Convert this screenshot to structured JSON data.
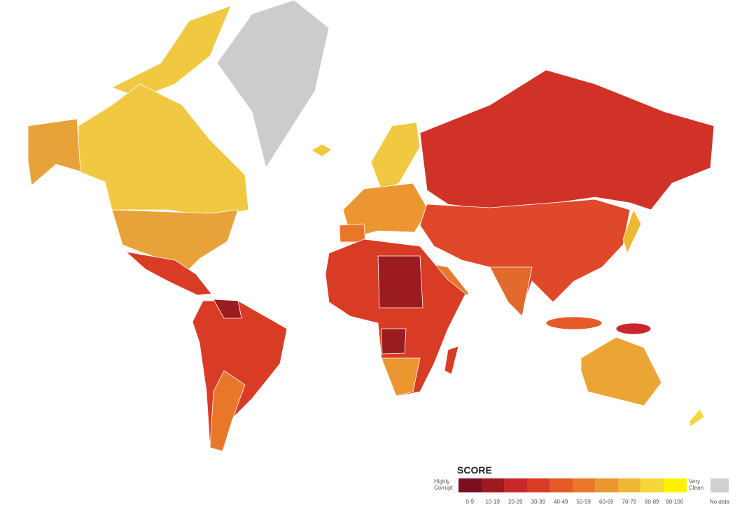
{
  "legend": {
    "title": "SCORE",
    "low_label": "Highly Corrupt",
    "high_label": "Very Clean",
    "bins": [
      {
        "label": "0-9",
        "color": "#7a1020"
      },
      {
        "label": "10-19",
        "color": "#9b1b1e"
      },
      {
        "label": "20-29",
        "color": "#c8282a"
      },
      {
        "label": "30-39",
        "color": "#d93c25"
      },
      {
        "label": "40-49",
        "color": "#e45a26"
      },
      {
        "label": "50-59",
        "color": "#e8772a"
      },
      {
        "label": "60-69",
        "color": "#eb9630"
      },
      {
        "label": "70-79",
        "color": "#f0b732"
      },
      {
        "label": "80-89",
        "color": "#f5d63a"
      },
      {
        "label": "90-100",
        "color": "#fff200"
      }
    ],
    "no_data": {
      "label": "No data",
      "color": "#d0d0d0"
    }
  }
}
